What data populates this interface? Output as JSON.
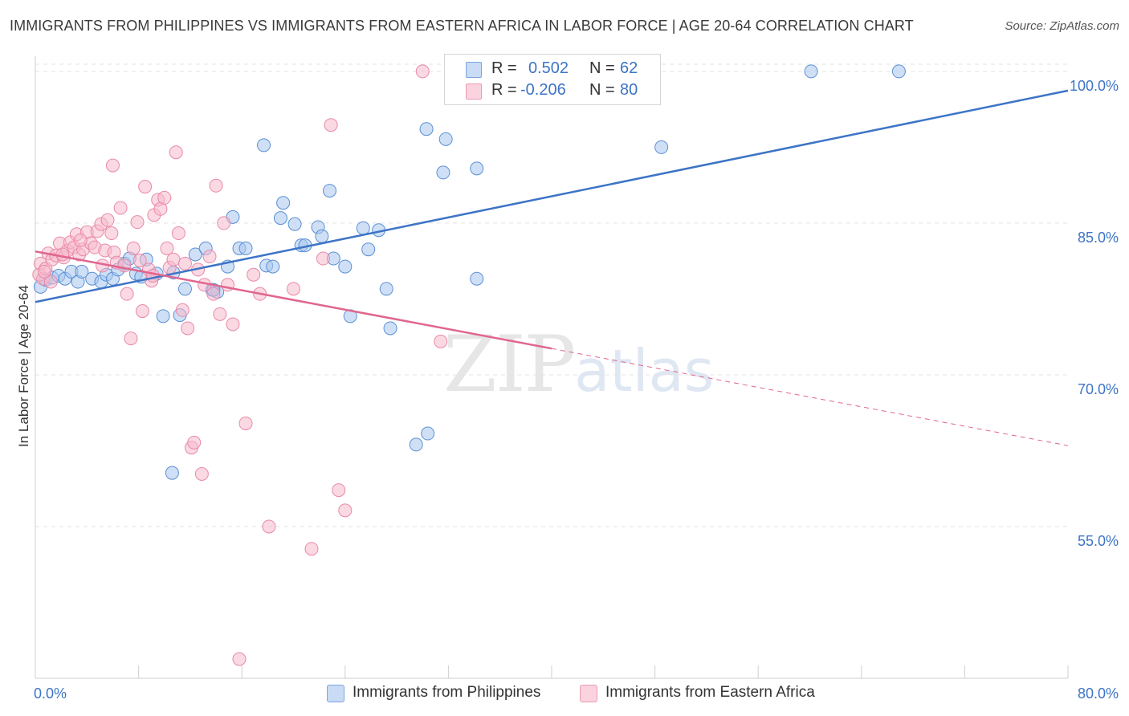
{
  "header": {
    "title": "IMMIGRANTS FROM PHILIPPINES VS IMMIGRANTS FROM EASTERN AFRICA IN LABOR FORCE | AGE 20-64 CORRELATION CHART",
    "source": "Source: ZipAtlas.com"
  },
  "watermark": {
    "zip": "ZIP",
    "atlas": "atlas"
  },
  "stats": {
    "rows": [
      {
        "r_label": "R =",
        "r_value": "0.502",
        "n_label": "N =",
        "n_value": "62",
        "color": "#a8c6ee"
      },
      {
        "r_label": "R =",
        "r_value": "-0.206",
        "n_label": "N =",
        "n_value": "80",
        "color": "#f6b9cc"
      }
    ]
  },
  "legend": {
    "items": [
      {
        "label": "Immigrants from Philippines",
        "color": "#a8c6ee"
      },
      {
        "label": "Immigrants from Eastern Africa",
        "color": "#f6b9cc"
      }
    ]
  },
  "chart_data": {
    "type": "scatter",
    "title": "IMMIGRANTS FROM PHILIPPINES VS IMMIGRANTS FROM EASTERN AFRICA IN LABOR FORCE | AGE 20-64 CORRELATION CHART",
    "xlabel": "",
    "ylabel": "In Labor Force | Age 20-64",
    "xlim": [
      0,
      80
    ],
    "ylim": [
      40,
      101.5
    ],
    "x_tick_labels": [
      "0.0%",
      "80.0%"
    ],
    "y_ticks": [
      {
        "value": 55,
        "label": "55.0%"
      },
      {
        "value": 70,
        "label": "70.0%"
      },
      {
        "value": 85,
        "label": "85.0%"
      },
      {
        "value": 100,
        "label": "100.0%"
      }
    ],
    "grid": true,
    "legend_position": "bottom",
    "colors": {
      "philippines": "#3d74c6",
      "eastern_africa": "#e0668e",
      "axis_text": "#3d74c6"
    },
    "series": [
      {
        "name": "Immigrants from Philippines",
        "color": "#a8c6ee",
        "stroke": "#5b8fd4",
        "points": [
          [
            0.4,
            78.7
          ],
          [
            0.8,
            79.4
          ],
          [
            1.3,
            79.6
          ],
          [
            1.8,
            79.8
          ],
          [
            2.3,
            79.5
          ],
          [
            2.8,
            80.2
          ],
          [
            3.3,
            79.2
          ],
          [
            3.6,
            80.2
          ],
          [
            4.4,
            79.5
          ],
          [
            5.1,
            79.2
          ],
          [
            5.5,
            79.9
          ],
          [
            6.0,
            79.5
          ],
          [
            6.4,
            80.4
          ],
          [
            6.9,
            81.0
          ],
          [
            7.3,
            81.5
          ],
          [
            7.8,
            80.0
          ],
          [
            8.2,
            79.7
          ],
          [
            8.6,
            81.4
          ],
          [
            9.4,
            80.0
          ],
          [
            9.9,
            75.8
          ],
          [
            10.7,
            80.1
          ],
          [
            11.2,
            75.9
          ],
          [
            11.6,
            78.5
          ],
          [
            12.4,
            81.9
          ],
          [
            13.2,
            82.5
          ],
          [
            13.7,
            78.4
          ],
          [
            14.1,
            78.2
          ],
          [
            14.9,
            80.7
          ],
          [
            15.3,
            85.6
          ],
          [
            15.8,
            82.5
          ],
          [
            16.3,
            82.5
          ],
          [
            17.7,
            92.7
          ],
          [
            17.9,
            80.8
          ],
          [
            18.4,
            80.7
          ],
          [
            19.0,
            85.5
          ],
          [
            19.2,
            87.0
          ],
          [
            20.1,
            84.9
          ],
          [
            20.6,
            82.8
          ],
          [
            20.9,
            82.8
          ],
          [
            21.9,
            84.6
          ],
          [
            22.2,
            83.7
          ],
          [
            22.8,
            88.2
          ],
          [
            23.1,
            81.5
          ],
          [
            24.0,
            80.7
          ],
          [
            24.4,
            75.8
          ],
          [
            25.4,
            84.5
          ],
          [
            25.8,
            82.4
          ],
          [
            26.6,
            84.3
          ],
          [
            27.2,
            78.5
          ],
          [
            27.5,
            74.6
          ],
          [
            29.5,
            63.1
          ],
          [
            30.3,
            94.3
          ],
          [
            30.4,
            64.2
          ],
          [
            31.6,
            90.0
          ],
          [
            31.8,
            93.3
          ],
          [
            34.2,
            90.4
          ],
          [
            34.2,
            79.5
          ],
          [
            48.5,
            92.5
          ],
          [
            60.1,
            100.0
          ],
          [
            66.9,
            100.0
          ],
          [
            10.6,
            60.3
          ],
          [
            13.8,
            78.4
          ]
        ],
        "trend": {
          "x": [
            0,
            80
          ],
          "y": [
            77.2,
            98.1
          ]
        }
      },
      {
        "name": "Immigrants from Eastern Africa",
        "color": "#f6b9cc",
        "stroke": "#e989a9",
        "points": [
          [
            0.3,
            79.9
          ],
          [
            0.4,
            81.0
          ],
          [
            0.6,
            79.5
          ],
          [
            0.8,
            80.5
          ],
          [
            1.0,
            82.0
          ],
          [
            1.3,
            81.4
          ],
          [
            1.6,
            81.8
          ],
          [
            1.9,
            83.0
          ],
          [
            2.2,
            81.6
          ],
          [
            2.5,
            82.3
          ],
          [
            2.7,
            83.1
          ],
          [
            3.0,
            82.6
          ],
          [
            3.2,
            83.9
          ],
          [
            3.4,
            81.9
          ],
          [
            3.7,
            82.4
          ],
          [
            4.0,
            84.1
          ],
          [
            4.3,
            83.0
          ],
          [
            4.6,
            82.6
          ],
          [
            4.8,
            84.2
          ],
          [
            5.1,
            84.9
          ],
          [
            5.4,
            82.3
          ],
          [
            5.6,
            85.3
          ],
          [
            5.9,
            84.0
          ],
          [
            6.1,
            82.1
          ],
          [
            6.3,
            81.1
          ],
          [
            6.6,
            86.5
          ],
          [
            6.9,
            80.8
          ],
          [
            7.1,
            78.0
          ],
          [
            7.4,
            73.6
          ],
          [
            7.6,
            82.5
          ],
          [
            7.9,
            85.1
          ],
          [
            8.1,
            81.3
          ],
          [
            8.3,
            76.3
          ],
          [
            8.5,
            88.6
          ],
          [
            8.8,
            80.4
          ],
          [
            9.0,
            79.3
          ],
          [
            9.2,
            85.8
          ],
          [
            9.5,
            87.3
          ],
          [
            9.7,
            86.4
          ],
          [
            10.0,
            87.5
          ],
          [
            10.2,
            82.5
          ],
          [
            10.4,
            80.6
          ],
          [
            10.7,
            81.4
          ],
          [
            10.9,
            92.0
          ],
          [
            11.1,
            84.0
          ],
          [
            11.4,
            76.4
          ],
          [
            11.6,
            81.0
          ],
          [
            11.8,
            74.6
          ],
          [
            12.1,
            62.8
          ],
          [
            12.3,
            63.3
          ],
          [
            12.6,
            80.4
          ],
          [
            12.9,
            60.2
          ],
          [
            13.1,
            78.9
          ],
          [
            13.5,
            81.7
          ],
          [
            13.8,
            78.0
          ],
          [
            14.0,
            88.7
          ],
          [
            14.3,
            76.0
          ],
          [
            14.6,
            85.0
          ],
          [
            14.9,
            78.9
          ],
          [
            15.3,
            75.0
          ],
          [
            15.8,
            41.9
          ],
          [
            16.3,
            65.2
          ],
          [
            16.9,
            79.9
          ],
          [
            17.4,
            78.0
          ],
          [
            18.1,
            55.0
          ],
          [
            20.0,
            78.5
          ],
          [
            21.4,
            52.8
          ],
          [
            22.3,
            81.5
          ],
          [
            22.9,
            94.7
          ],
          [
            23.5,
            58.6
          ],
          [
            24.0,
            56.6
          ],
          [
            30.0,
            100.0
          ],
          [
            31.4,
            73.3
          ],
          [
            6.0,
            90.7
          ],
          [
            9.1,
            79.8
          ],
          [
            3.5,
            83.3
          ],
          [
            5.2,
            80.8
          ],
          [
            2.1,
            81.9
          ],
          [
            1.2,
            79.2
          ],
          [
            0.7,
            80.2
          ]
        ],
        "trend": {
          "x": [
            0,
            40
          ],
          "y": [
            82.2,
            72.6
          ]
        },
        "trend_dashed": {
          "x": [
            40,
            80
          ],
          "y": [
            72.6,
            63.0
          ]
        }
      }
    ]
  }
}
